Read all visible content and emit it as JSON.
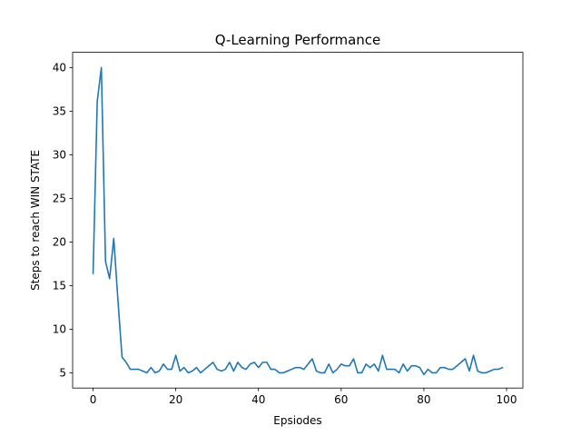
{
  "chart_data": {
    "type": "line",
    "title": "Q-Learning Performance",
    "xlabel": "Epsiodes",
    "ylabel": "Steps to reach WIN STATE",
    "xlim": [
      -4.95,
      103.95
    ],
    "ylim": [
      3.25,
      41.75
    ],
    "x_ticks": [
      0,
      20,
      40,
      60,
      80,
      100
    ],
    "y_ticks": [
      5,
      10,
      15,
      20,
      25,
      30,
      35,
      40
    ],
    "grid": false,
    "legend": "none",
    "series": [
      {
        "color": "#1f77b4",
        "x": [
          0,
          1,
          2,
          3,
          4,
          5,
          6,
          7,
          8,
          9,
          10,
          11,
          12,
          13,
          14,
          15,
          16,
          17,
          18,
          19,
          20,
          21,
          22,
          23,
          24,
          25,
          26,
          27,
          28,
          29,
          30,
          31,
          32,
          33,
          34,
          35,
          36,
          37,
          38,
          39,
          40,
          41,
          42,
          43,
          44,
          45,
          46,
          47,
          48,
          49,
          50,
          51,
          52,
          53,
          54,
          55,
          56,
          57,
          58,
          59,
          60,
          61,
          62,
          63,
          64,
          65,
          66,
          67,
          68,
          69,
          70,
          71,
          72,
          73,
          74,
          75,
          76,
          77,
          78,
          79,
          80,
          81,
          82,
          83,
          84,
          85,
          86,
          87,
          88,
          89,
          90,
          91,
          92,
          93,
          94,
          95,
          96,
          97,
          98,
          99
        ],
        "values": [
          16.4,
          36.1,
          40.0,
          17.8,
          15.8,
          20.4,
          13.4,
          6.8,
          6.2,
          5.4,
          5.4,
          5.4,
          5.2,
          5.0,
          5.6,
          5.0,
          5.2,
          6.0,
          5.4,
          5.4,
          7.0,
          5.2,
          5.6,
          5.0,
          5.2,
          5.6,
          5.0,
          5.4,
          5.8,
          6.2,
          5.4,
          5.2,
          5.4,
          6.2,
          5.2,
          6.2,
          5.6,
          5.4,
          6.0,
          6.2,
          5.6,
          6.2,
          6.2,
          5.4,
          5.4,
          5.0,
          5.0,
          5.2,
          5.4,
          5.6,
          5.6,
          5.4,
          6.0,
          6.6,
          5.2,
          5.0,
          5.0,
          6.0,
          5.0,
          5.4,
          6.0,
          5.8,
          5.8,
          6.6,
          5.0,
          5.0,
          6.0,
          5.6,
          6.0,
          5.2,
          7.0,
          5.4,
          5.4,
          5.4,
          5.0,
          6.0,
          5.2,
          5.8,
          5.8,
          5.6,
          4.8,
          5.4,
          5.0,
          5.0,
          5.6,
          5.6,
          5.4,
          5.4,
          5.8,
          6.2,
          6.6,
          5.2,
          7.0,
          5.2,
          5.0,
          5.0,
          5.2,
          5.4,
          5.4,
          5.6
        ]
      }
    ]
  }
}
